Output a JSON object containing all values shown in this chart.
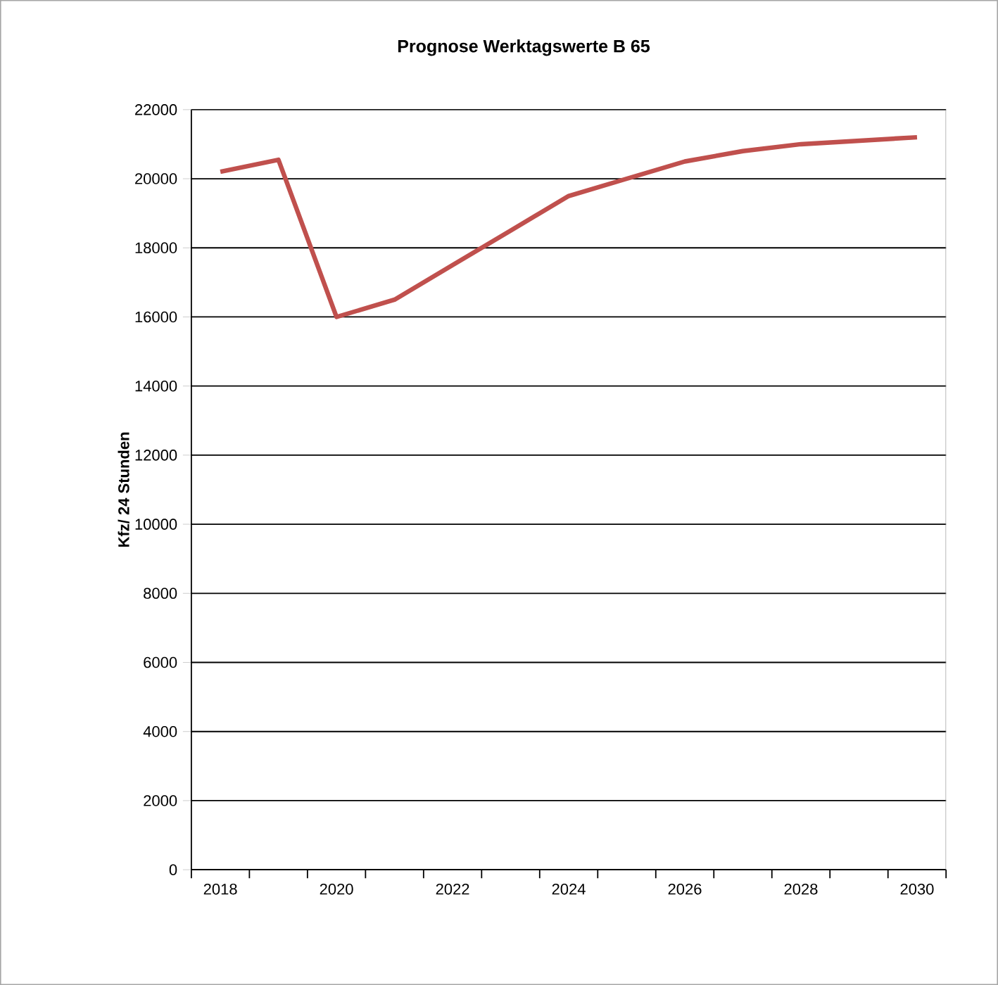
{
  "chart_data": {
    "type": "line",
    "title": "Prognose  Werktagswerte B  65",
    "ylabel": "Kfz/ 24 Stunden",
    "categories": [
      "2018",
      null,
      "2020",
      null,
      "2022",
      null,
      "2024",
      null,
      "2026",
      null,
      "2028",
      null,
      "2030"
    ],
    "series": [
      {
        "color": "#c0504d",
        "values": [
          20200,
          20550,
          16000,
          16500,
          17500,
          18500,
          19500,
          20000,
          20500,
          20800,
          21000,
          21100,
          21200
        ]
      }
    ],
    "ylim": [
      0,
      22000
    ],
    "yticks": [
      0,
      2000,
      4000,
      6000,
      8000,
      10000,
      12000,
      14000,
      16000,
      18000,
      20000,
      22000
    ],
    "grid": "y",
    "marker": "none",
    "line_style": "solid"
  }
}
